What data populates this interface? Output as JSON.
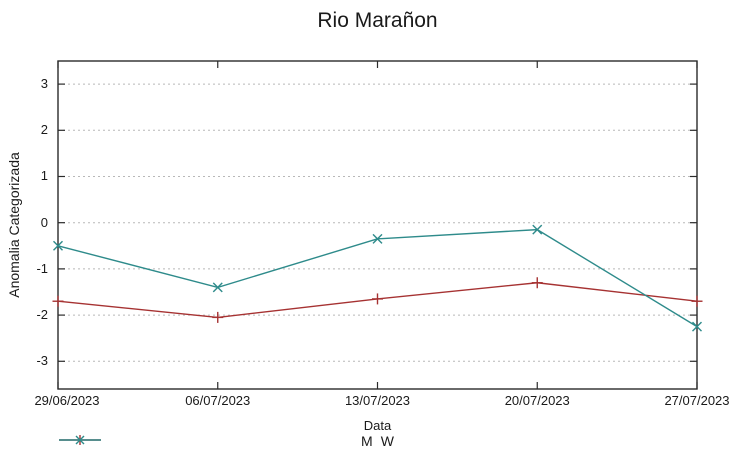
{
  "chart_data": {
    "type": "line",
    "title": "Rio Marañon",
    "xlabel": "Data",
    "ylabel": "Anomalia Categorizada",
    "categories": [
      "29/06/2023",
      "06/07/2023",
      "13/07/2023",
      "20/07/2023",
      "27/07/2023"
    ],
    "series": [
      {
        "name": "M",
        "marker": "plus-marker",
        "color": "#a63232",
        "values": [
          -1.7,
          -2.05,
          -1.65,
          -1.3,
          -1.7
        ]
      },
      {
        "name": "W",
        "marker": "cross-marker",
        "color": "#2e8b8b",
        "values": [
          -0.5,
          -1.4,
          -0.35,
          -0.15,
          -2.25
        ]
      }
    ],
    "yticks": [
      3,
      2,
      1,
      0,
      -1,
      -2,
      -3
    ],
    "ylim": [
      -3.6,
      3.5
    ],
    "grid": "horizontal-dotted",
    "legend_position": "bottom-center"
  },
  "colors": {
    "background": "#ffffff",
    "axis": "#2b2b2b",
    "grid": "#b8b8b8",
    "text": "#1a1a1a"
  }
}
